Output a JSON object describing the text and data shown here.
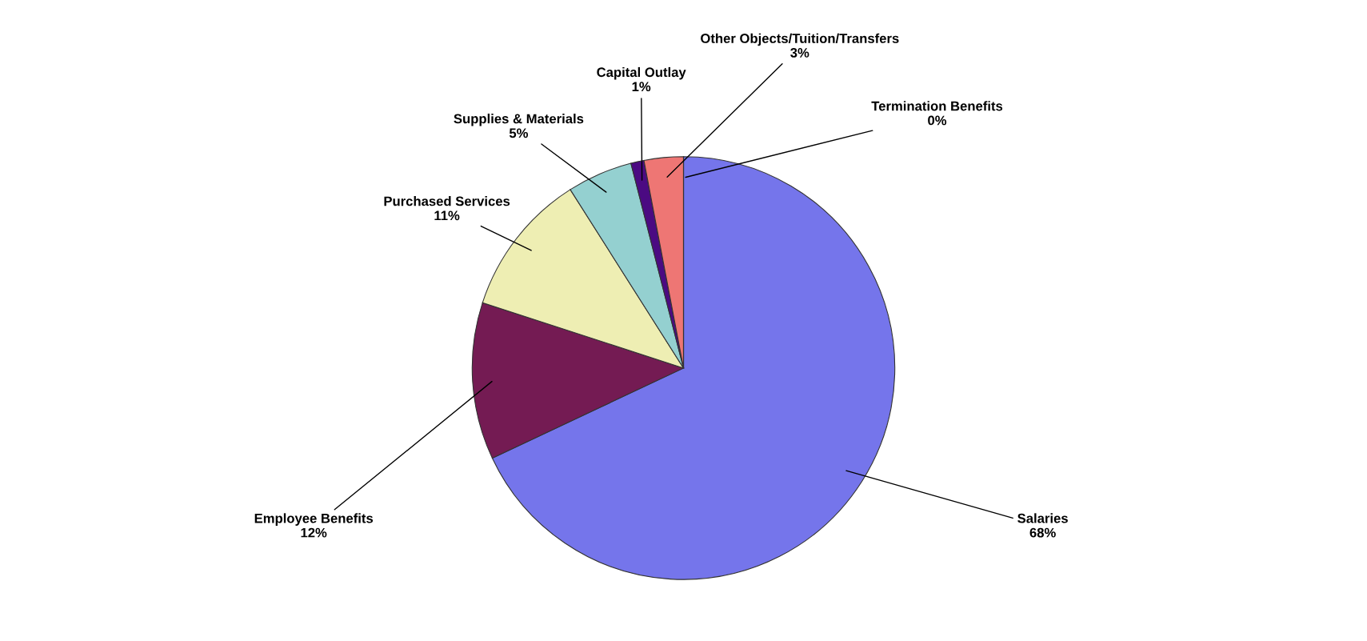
{
  "chart_data": {
    "type": "pie",
    "categories": [
      "Salaries",
      "Employee Benefits",
      "Purchased Services",
      "Supplies & Materials",
      "Capital Outlay",
      "Other Objects/Tuition/Transfers",
      "Termination Benefits"
    ],
    "values": [
      68,
      12,
      11,
      5,
      1,
      3,
      0
    ],
    "value_labels": [
      "68%",
      "12%",
      "11%",
      "5%",
      "1%",
      "3%",
      "0%"
    ],
    "colors": [
      "#7575eb",
      "#741b53",
      "#eeeeb3",
      "#94d0d0",
      "#4b0a82",
      "#ee7674",
      "#dde8ff"
    ],
    "legend": false
  }
}
